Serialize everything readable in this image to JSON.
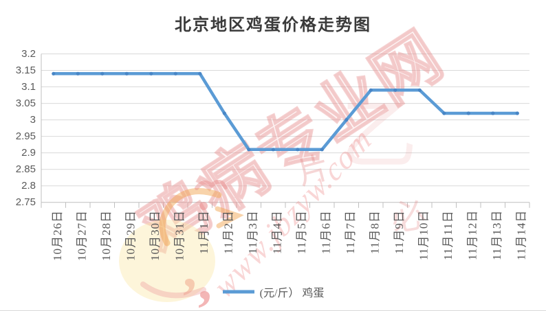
{
  "title": "北京地区鸡蛋价格走势图",
  "legend": {
    "label": "(元/斤） 鸡蛋"
  },
  "y_axis": {
    "ticks": [
      "3.2",
      "3.15",
      "3.1",
      "3.05",
      "3",
      "2.95",
      "2.9",
      "2.85",
      "2.8",
      "2.75"
    ]
  },
  "watermark": {
    "brand": "鸡病专业网",
    "url": "www.jbzyw.com",
    "glyphs": [
      "片",
      "乙",
      "必"
    ],
    "quote_mark": ","
  },
  "colors": {
    "line": "#5B9BD5",
    "marker": "#4886C6",
    "grid": "#D9D9D9",
    "axis": "#BFBFBF",
    "axis_text": "#595959",
    "title_text": "#3A3A3A",
    "watermark_red": "#E07070",
    "watermark_orange": "#F1A44E",
    "watermark_yellow": "#FAE7A8"
  },
  "chart_data": {
    "type": "line",
    "title": "北京地区鸡蛋价格走势图",
    "categories": [
      "10月26日",
      "10月27日",
      "10月28日",
      "10月29日",
      "10月30日",
      "10月31日",
      "11月1日",
      "11月2日",
      "11月3日",
      "11月4日",
      "11月5日",
      "11月6日",
      "11月7日",
      "11月8日",
      "11月9日",
      "11月10日",
      "11月11日",
      "11月12日",
      "11月13日",
      "11月14日"
    ],
    "series": [
      {
        "name": "(元/斤） 鸡蛋",
        "values": [
          3.14,
          3.14,
          3.14,
          3.14,
          3.14,
          3.14,
          3.14,
          3.02,
          2.91,
          2.91,
          2.91,
          2.91,
          3.0,
          3.09,
          3.09,
          3.09,
          3.02,
          3.02,
          3.02,
          3.02
        ]
      }
    ],
    "xlabel": "",
    "ylabel": "",
    "ylim": [
      2.75,
      3.2
    ],
    "ytick_step": 0.05,
    "grid": "horizontal",
    "legend_position": "bottom",
    "x_label_rotation": -90
  }
}
